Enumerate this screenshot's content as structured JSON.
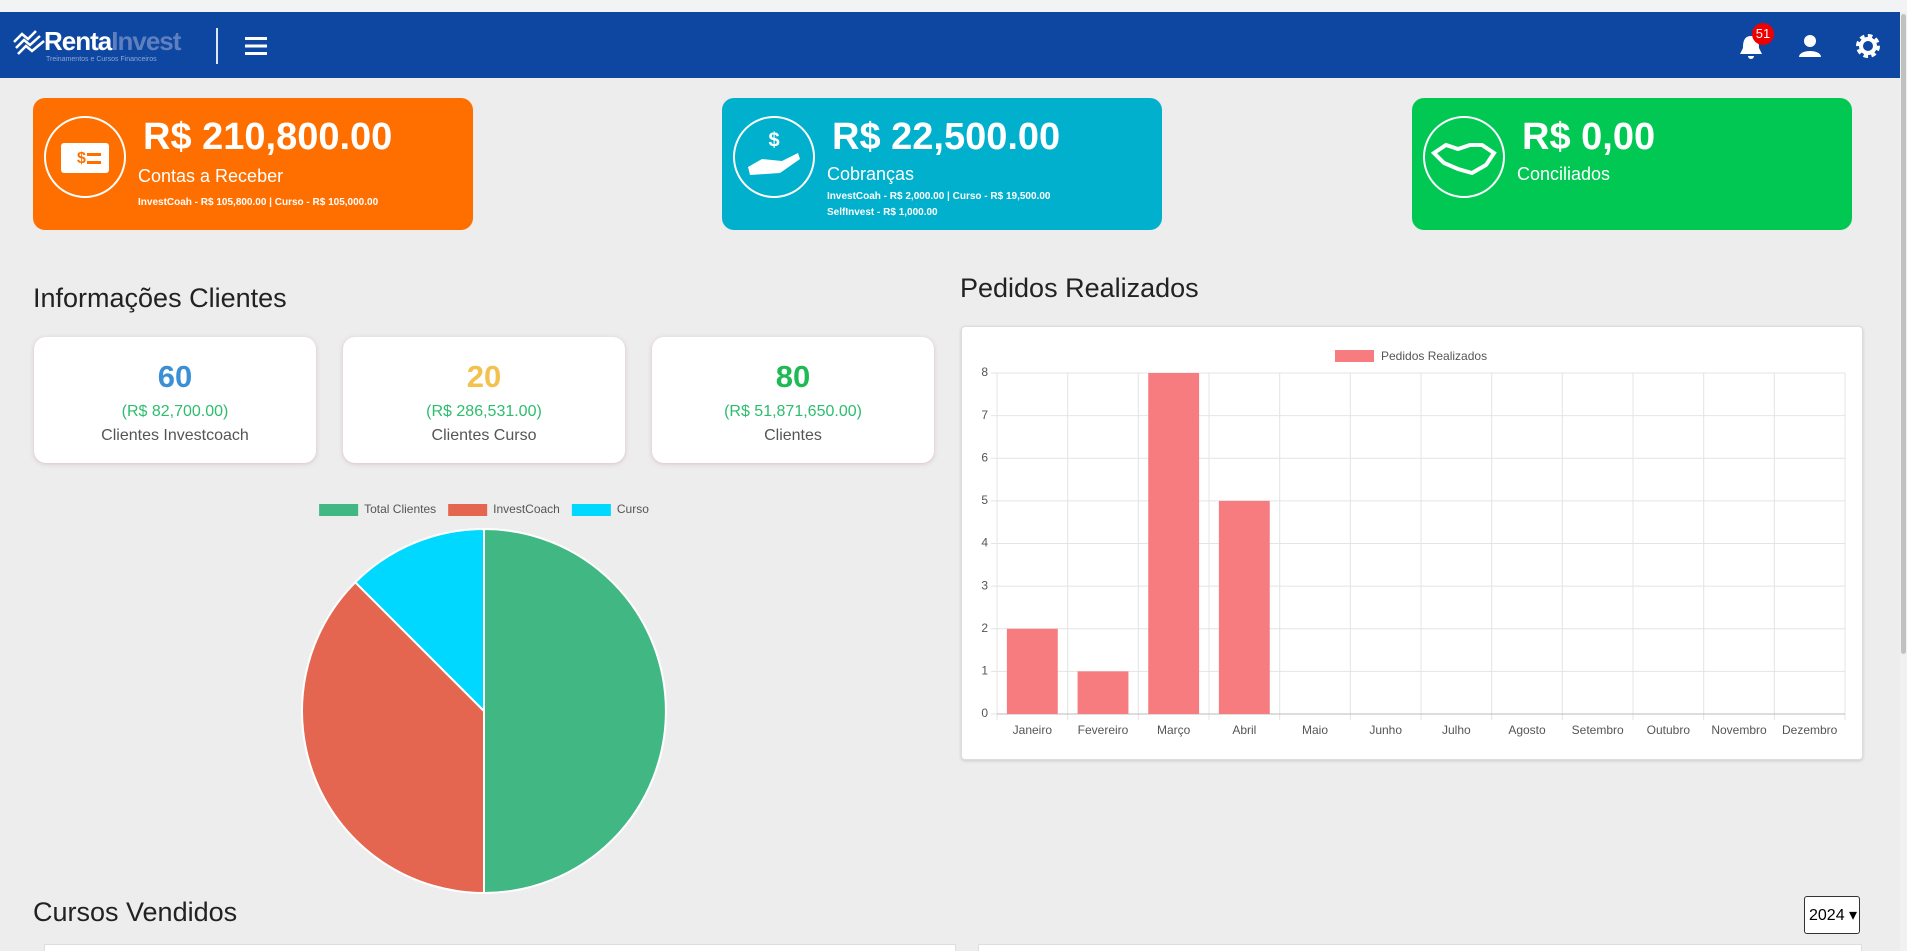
{
  "header": {
    "brand_a": "Renta",
    "brand_b": "Invest",
    "tagline": "Treinamentos e Cursos Financeiros",
    "notifications": "51"
  },
  "cards": [
    {
      "amount": "R$ 210,800.00",
      "label": "Contas a Receber",
      "details": [
        "InvestCoah - R$ 105,800.00 | Curso - R$ 105,000.00"
      ]
    },
    {
      "amount": "R$ 22,500.00",
      "label": "Cobranças",
      "details": [
        "InvestCoah - R$ 2,000.00 | Curso - R$ 19,500.00",
        "SelfInvest - R$ 1,000.00"
      ]
    },
    {
      "amount": "R$ 0,00",
      "label": "Conciliados",
      "details": []
    }
  ],
  "clients": {
    "title": "Informações Clientes",
    "stats": [
      {
        "count": 60,
        "amount": "(R$ 82,700.00)",
        "label": "Clientes Investcoach",
        "color": "#3b8fd6"
      },
      {
        "count": 20,
        "amount": "(R$ 286,531.00)",
        "label": "Clientes Curso",
        "color": "#f2c14e"
      },
      {
        "count": 80,
        "amount": "(R$ 51,871,650.00)",
        "label": "Clientes",
        "color": "#1fb955"
      }
    ]
  },
  "orders_title": "Pedidos Realizados",
  "chart_data": [
    {
      "type": "pie",
      "categories": [
        "Total Clientes",
        "InvestCoach",
        "Curso"
      ],
      "values": [
        80,
        60,
        20
      ],
      "colors": [
        "#41b883",
        "#e46651",
        "#00d8ff"
      ]
    },
    {
      "type": "bar",
      "series": [
        {
          "name": "Pedidos Realizados",
          "color": "#f77c80",
          "values": [
            2,
            1,
            8,
            5,
            0,
            0,
            0,
            0,
            0,
            0,
            0,
            0
          ]
        }
      ],
      "categories": [
        "Janeiro",
        "Fevereiro",
        "Março",
        "Abril",
        "Maio",
        "Junho",
        "Julho",
        "Agosto",
        "Setembro",
        "Outubro",
        "Novembro",
        "Dezembro"
      ],
      "ylim": [
        0,
        8
      ],
      "yticks": [
        0,
        1,
        2,
        3,
        4,
        5,
        6,
        7,
        8
      ],
      "grid": true
    }
  ],
  "courses": {
    "title": "Cursos Vendidos",
    "year": "2024"
  }
}
